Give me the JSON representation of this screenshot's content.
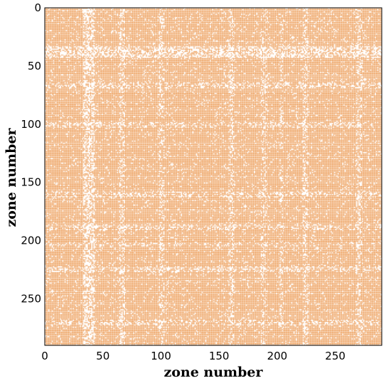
{
  "chart_data": {
    "type": "heatmap",
    "subtype": "sparsity-pattern",
    "title": "",
    "xlabel": "zone number",
    "ylabel": "zone number",
    "xlim": [
      0,
      290
    ],
    "ylim": [
      0,
      290
    ],
    "y_axis_inverted": true,
    "x_ticks": [
      0,
      50,
      100,
      150,
      200,
      250
    ],
    "y_ticks": [
      0,
      50,
      100,
      150,
      200,
      250
    ],
    "n_zones": 290,
    "marker_color": "#E8822A",
    "background_color": "#FFFFFF",
    "grid": false,
    "legend": "none",
    "sparse_zone_bands": [
      {
        "start": 33,
        "end": 42,
        "density": 0.28
      },
      {
        "start": 64,
        "end": 68,
        "density": 0.45
      },
      {
        "start": 98,
        "end": 102,
        "density": 0.55
      },
      {
        "start": 158,
        "end": 162,
        "density": 0.5
      },
      {
        "start": 186,
        "end": 190,
        "density": 0.55
      },
      {
        "start": 202,
        "end": 204,
        "density": 0.6
      },
      {
        "start": 222,
        "end": 226,
        "density": 0.5
      },
      {
        "start": 268,
        "end": 272,
        "density": 0.5
      }
    ],
    "base_density": 0.93
  }
}
